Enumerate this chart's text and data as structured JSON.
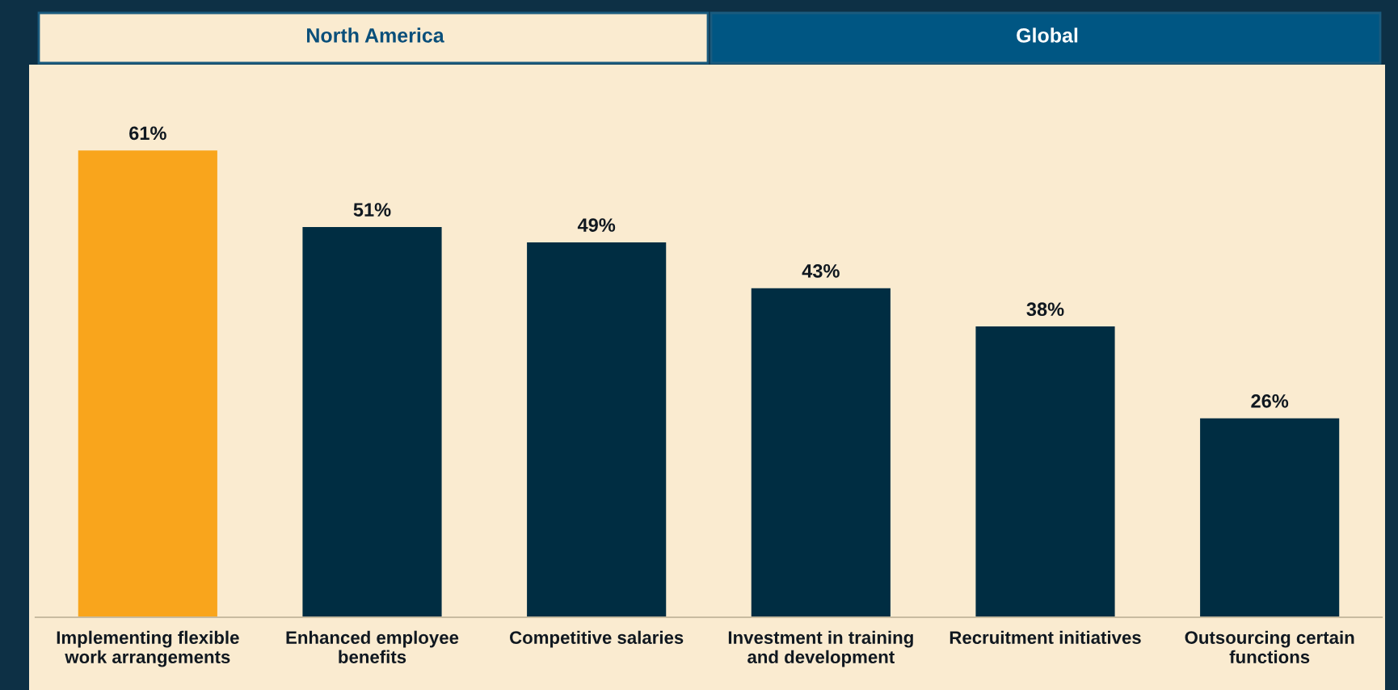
{
  "chart_data": {
    "type": "bar",
    "annotations": [
      "North America",
      "Global"
    ],
    "categories": [
      "Implementing flexible\nwork arrangements",
      "Enhanced employee\nbenefits",
      "Competitive salaries",
      "Investment in training\nand development",
      "Recruitment initiatives",
      "Outsourcing certain\nfunctions"
    ],
    "values": [
      61,
      51,
      49,
      43,
      38,
      26
    ],
    "colors": [
      "#f9a51c",
      "#002d42",
      "#002d42",
      "#002d42",
      "#002d42",
      "#002d42"
    ],
    "value_labels": [
      "61%",
      "51%",
      "49%",
      "43%",
      "38%",
      "26%"
    ],
    "grid": false
  }
}
